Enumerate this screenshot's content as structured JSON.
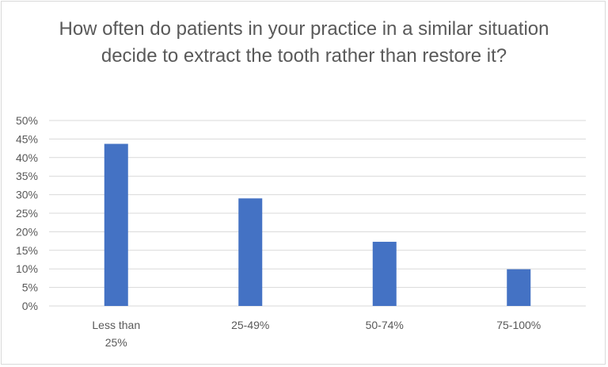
{
  "chart_data": {
    "type": "bar",
    "title": "How often do patients in your practice in a similar situation decide to extract the tooth rather than restore it?",
    "xlabel": "",
    "ylabel": "",
    "categories": [
      "Less than 25%",
      "25-49%",
      "50-74%",
      "75-100%"
    ],
    "category_lines": [
      [
        "Less than",
        "25%"
      ],
      [
        "25-49%"
      ],
      [
        "50-74%"
      ],
      [
        "75-100%"
      ]
    ],
    "values": [
      43.7,
      29.0,
      17.3,
      9.9
    ],
    "ylim": [
      0,
      50
    ],
    "y_ticks": [
      0,
      5,
      10,
      15,
      20,
      25,
      30,
      35,
      40,
      45,
      50
    ],
    "y_tick_labels": [
      "0%",
      "5%",
      "10%",
      "15%",
      "20%",
      "25%",
      "30%",
      "35%",
      "40%",
      "45%",
      "50%"
    ],
    "grid": true,
    "legend": "none",
    "bar_color": "#4472c4",
    "grid_color": "#d9d9d9"
  }
}
